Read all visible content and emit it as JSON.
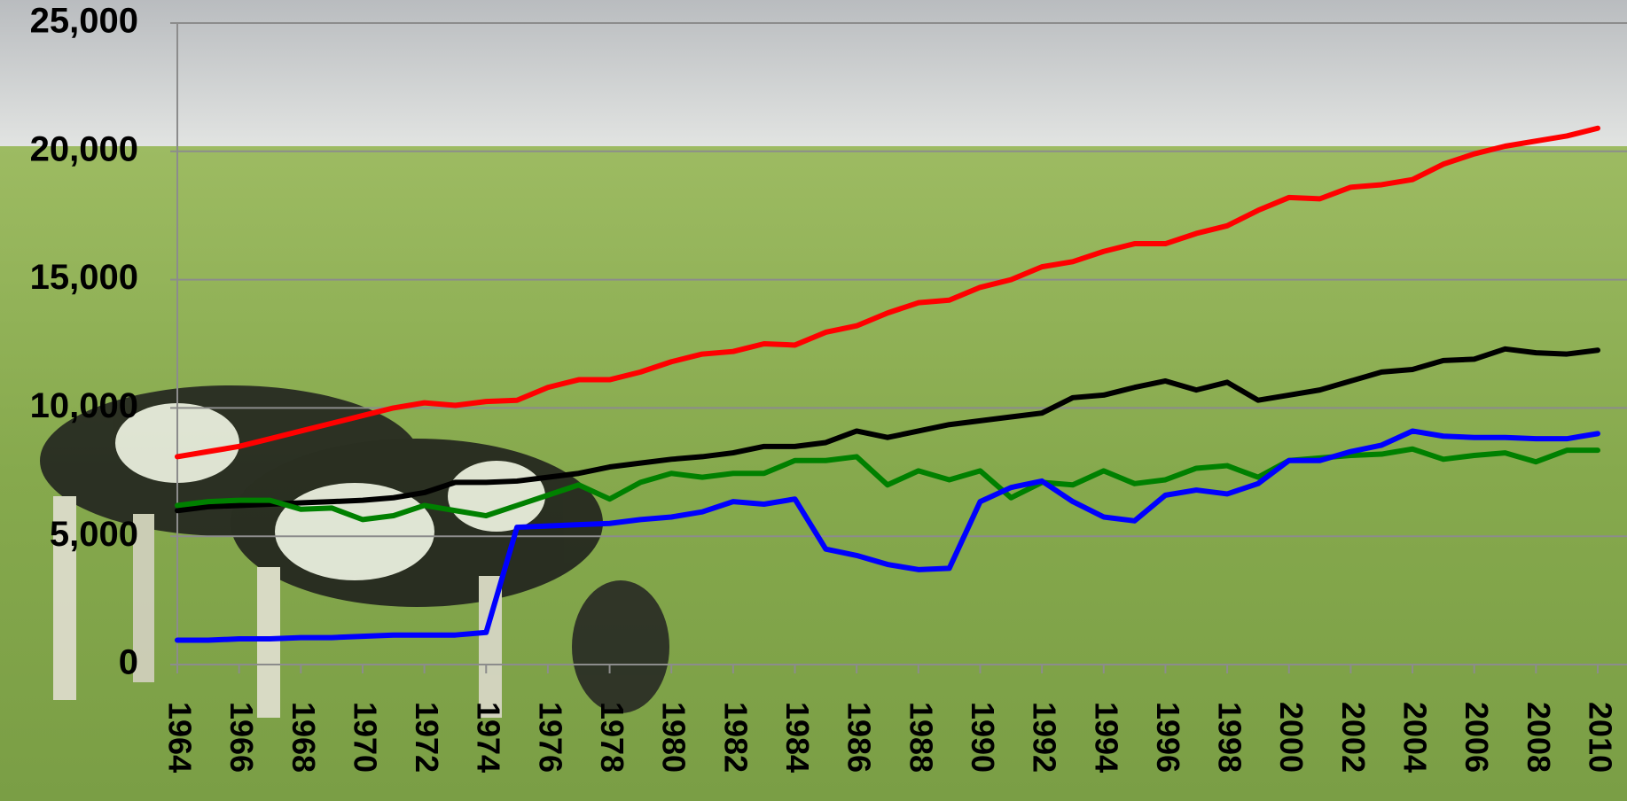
{
  "chart_data": {
    "type": "line",
    "x": [
      1964,
      1965,
      1966,
      1967,
      1968,
      1969,
      1970,
      1971,
      1972,
      1973,
      1974,
      1975,
      1976,
      1977,
      1978,
      1979,
      1980,
      1981,
      1982,
      1983,
      1984,
      1985,
      1986,
      1987,
      1988,
      1989,
      1990,
      1991,
      1992,
      1993,
      1994,
      1995,
      1996,
      1997,
      1998,
      1999,
      2000,
      2001,
      2002,
      2003,
      2004,
      2005,
      2006,
      2007,
      2008,
      2009,
      2010
    ],
    "xlim": [
      1964,
      2010
    ],
    "xticks": [
      1964,
      1966,
      1968,
      1970,
      1972,
      1974,
      1976,
      1978,
      1980,
      1982,
      1984,
      1986,
      1988,
      1990,
      1992,
      1994,
      1996,
      1998,
      2000,
      2002,
      2004,
      2006,
      2008,
      2010
    ],
    "ylim": [
      0,
      25000
    ],
    "yticks": [
      0,
      {
        "value": 5000,
        "label": "5,000"
      },
      {
        "value": 10000,
        "label": "10,000"
      },
      {
        "value": 15000,
        "label": "15,000"
      },
      {
        "value": 20000,
        "label": "20,000"
      },
      {
        "value": 25000,
        "label": "25,000"
      }
    ],
    "grid": true,
    "series": [
      {
        "color": "#ff0000",
        "values": [
          8100,
          8300,
          8500,
          8800,
          9100,
          9400,
          9700,
          10000,
          10200,
          10100,
          10250,
          10300,
          10800,
          11100,
          11100,
          11400,
          11800,
          12100,
          12200,
          12500,
          12450,
          12950,
          13200,
          13700,
          14100,
          14200,
          14700,
          15000,
          15500,
          15700,
          16100,
          16400,
          16400,
          16800,
          17100,
          17700,
          18200,
          18150,
          18600,
          18700,
          18900,
          19500,
          19900,
          20200,
          20400,
          20600,
          20900
        ]
      },
      {
        "color": "#000000",
        "values": [
          6000,
          6150,
          6200,
          6250,
          6300,
          6350,
          6400,
          6500,
          6700,
          7100,
          7100,
          7150,
          7300,
          7450,
          7700,
          7850,
          8000,
          8100,
          8250,
          8500,
          8500,
          8650,
          9100,
          8850,
          9100,
          9350,
          9500,
          9650,
          9800,
          10400,
          10500,
          10800,
          11050,
          10700,
          11000,
          10300,
          10500,
          10700,
          11050,
          11400,
          11500,
          11850,
          11900,
          12300,
          12150,
          12100,
          12250
        ]
      },
      {
        "color": "#008000",
        "values": [
          6200,
          6350,
          6400,
          6400,
          6050,
          6100,
          5650,
          5800,
          6200,
          6000,
          5800,
          6200,
          6600,
          7000,
          6450,
          7100,
          7450,
          7300,
          7450,
          7450,
          7950,
          7950,
          8100,
          7000,
          7550,
          7200,
          7550,
          6500,
          7100,
          7000,
          7550,
          7050,
          7200,
          7650,
          7750,
          7300,
          7950,
          8050,
          8150,
          8200,
          8400,
          8000,
          8150,
          8250,
          7900,
          8350,
          8350
        ]
      },
      {
        "color": "#0000ff",
        "values": [
          950,
          950,
          1000,
          1000,
          1050,
          1050,
          1100,
          1150,
          1150,
          1150,
          1250,
          5350,
          5400,
          5450,
          5500,
          5650,
          5750,
          5950,
          6350,
          6250,
          6450,
          4500,
          4250,
          3900,
          3700,
          3750,
          6350,
          6900,
          7150,
          6350,
          5750,
          5600,
          6600,
          6800,
          6650,
          7050,
          7950,
          7950,
          8300,
          8550,
          9100,
          8900,
          8850,
          8850,
          8800,
          8800,
          9000
        ]
      }
    ]
  }
}
